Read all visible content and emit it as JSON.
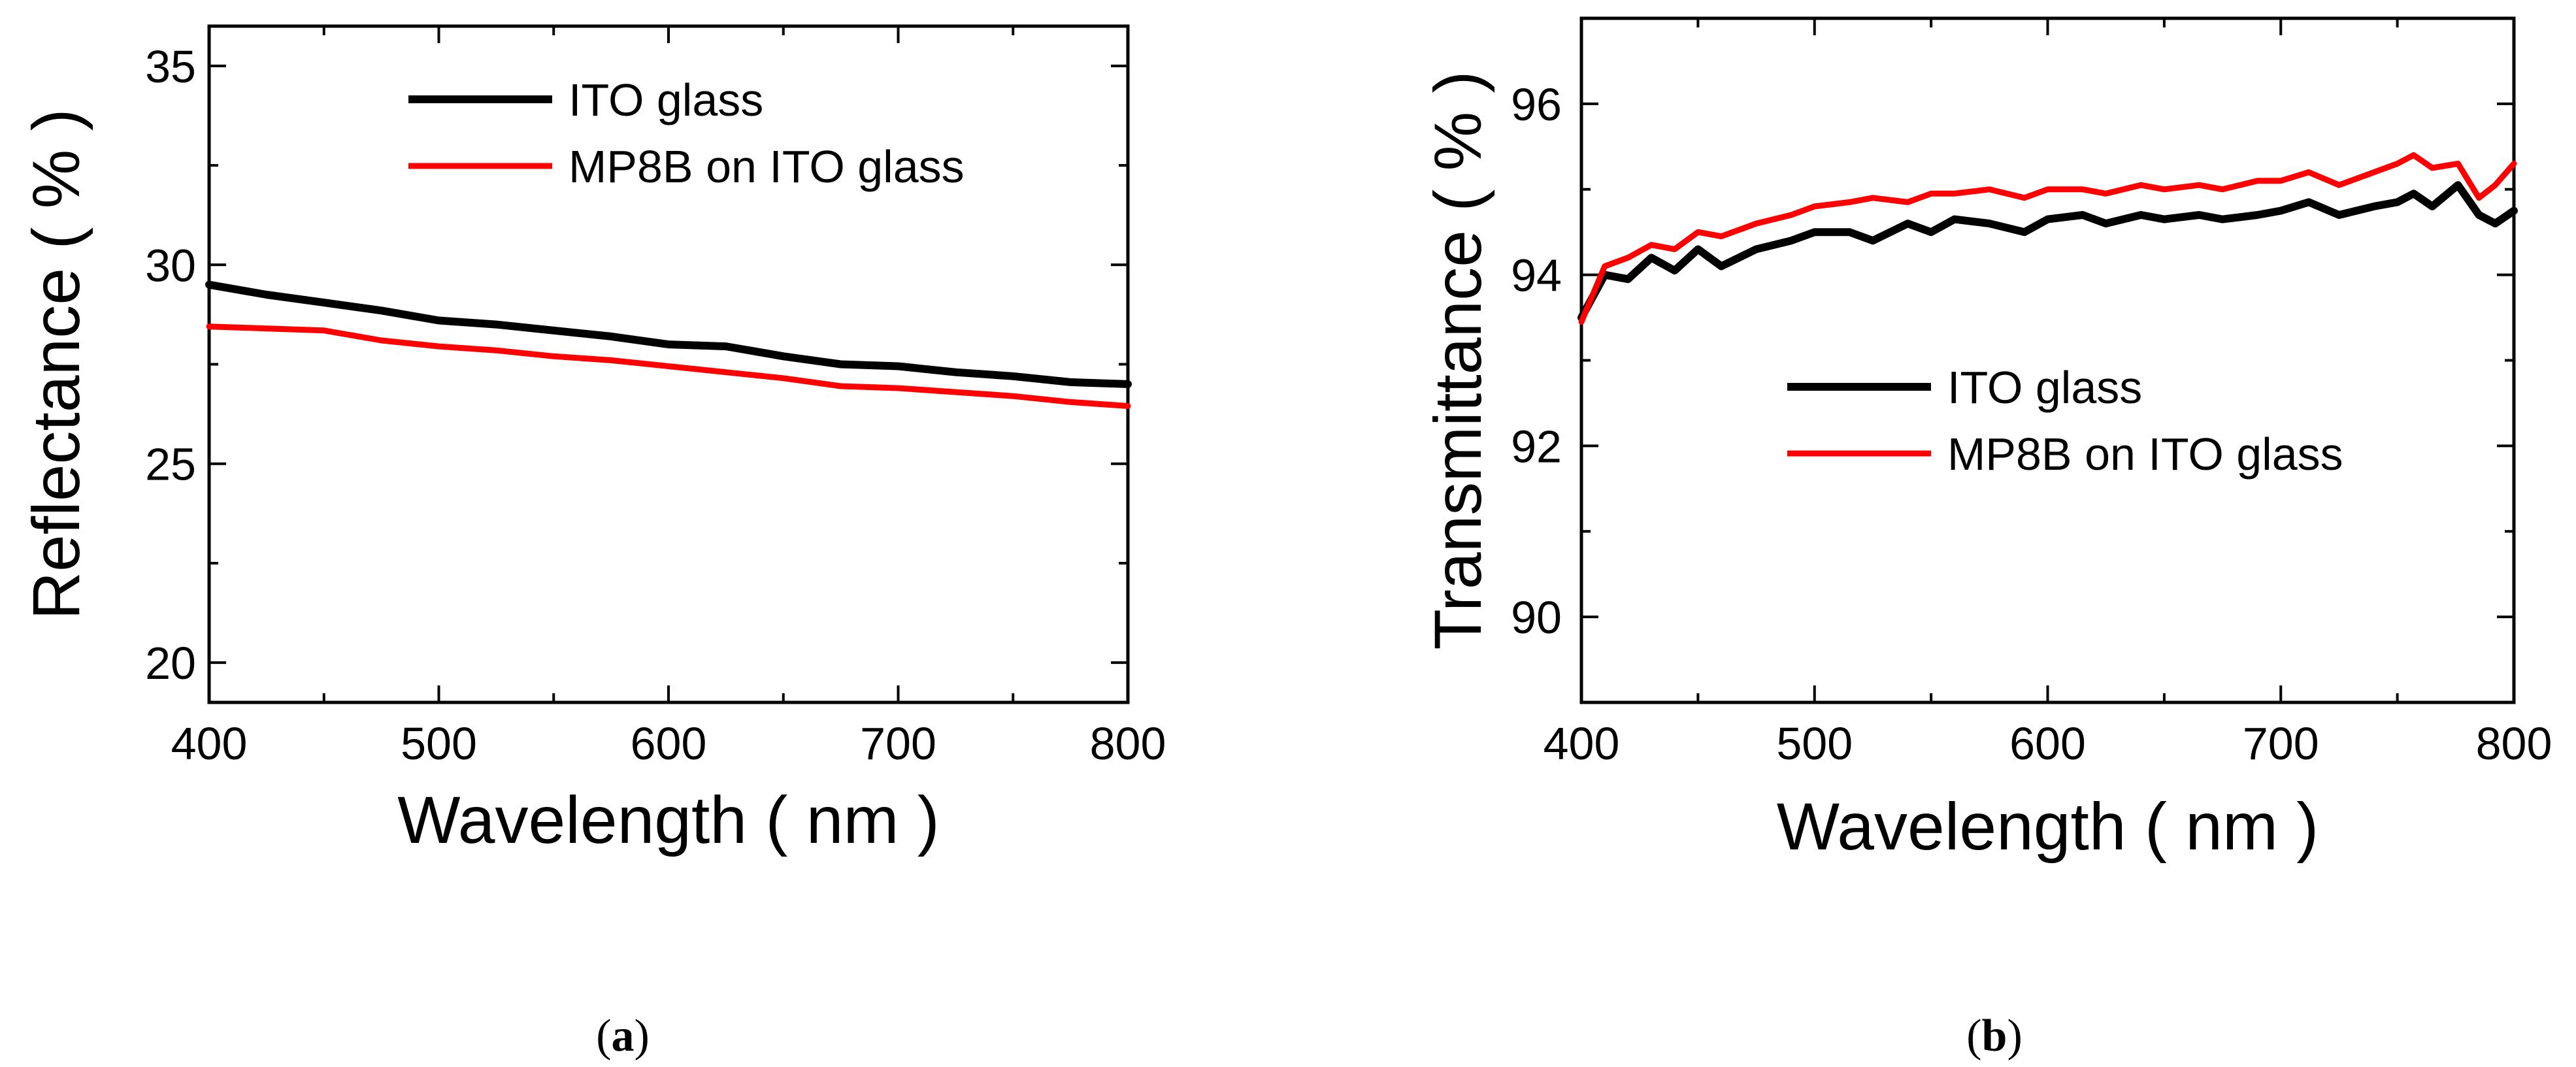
{
  "chart_data": [
    {
      "type": "line",
      "panel_label": "(a)",
      "panel_letter": "a",
      "xlabel": "Wavelength ( nm )",
      "ylabel": "Reflectance ( % )",
      "xlim": [
        400,
        800
      ],
      "ylim": [
        19,
        36
      ],
      "xticks": [
        400,
        500,
        600,
        700,
        800
      ],
      "yticks": [
        20,
        25,
        30,
        35
      ],
      "legend_position": "top-right",
      "x": [
        400,
        425,
        450,
        475,
        500,
        525,
        550,
        575,
        600,
        625,
        650,
        675,
        700,
        725,
        750,
        775,
        800
      ],
      "series": [
        {
          "name": "ITO glass",
          "color": "#000000",
          "values": [
            29.5,
            29.25,
            29.05,
            28.85,
            28.6,
            28.5,
            28.35,
            28.2,
            28.0,
            27.95,
            27.7,
            27.5,
            27.45,
            27.3,
            27.2,
            27.05,
            27.0
          ]
        },
        {
          "name": "MP8B on ITO glass",
          "color": "#ff0000",
          "values": [
            28.45,
            28.4,
            28.35,
            28.1,
            27.95,
            27.85,
            27.7,
            27.6,
            27.45,
            27.3,
            27.15,
            26.95,
            26.9,
            26.8,
            26.7,
            26.55,
            26.45
          ]
        }
      ]
    },
    {
      "type": "line",
      "panel_label": "(b)",
      "panel_letter": "b",
      "xlabel": "Wavelength ( nm )",
      "ylabel": "Transmittance ( % )",
      "xlim": [
        400,
        800
      ],
      "ylim": [
        89,
        97
      ],
      "xticks": [
        400,
        500,
        600,
        700,
        800
      ],
      "yticks": [
        90,
        92,
        94,
        96
      ],
      "legend_position": "center-right",
      "x": [
        400,
        410,
        420,
        430,
        440,
        450,
        460,
        475,
        490,
        500,
        515,
        525,
        540,
        550,
        560,
        575,
        590,
        600,
        615,
        625,
        640,
        650,
        665,
        675,
        690,
        700,
        712,
        725,
        740,
        750,
        757,
        765,
        776,
        785,
        792,
        800
      ],
      "series": [
        {
          "name": "ITO glass",
          "color": "#000000",
          "values": [
            93.5,
            94.0,
            93.95,
            94.2,
            94.05,
            94.3,
            94.1,
            94.3,
            94.4,
            94.5,
            94.5,
            94.4,
            94.6,
            94.5,
            94.65,
            94.6,
            94.5,
            94.65,
            94.7,
            94.6,
            94.7,
            94.65,
            94.7,
            94.65,
            94.7,
            94.75,
            94.85,
            94.7,
            94.8,
            94.85,
            94.95,
            94.8,
            95.05,
            94.7,
            94.6,
            94.75
          ]
        },
        {
          "name": "MP8B on ITO glass",
          "color": "#ff0000",
          "values": [
            93.45,
            94.1,
            94.2,
            94.35,
            94.3,
            94.5,
            94.45,
            94.6,
            94.7,
            94.8,
            94.85,
            94.9,
            94.85,
            94.95,
            94.95,
            95.0,
            94.9,
            95.0,
            95.0,
            94.95,
            95.05,
            95.0,
            95.05,
            95.0,
            95.1,
            95.1,
            95.2,
            95.05,
            95.2,
            95.3,
            95.4,
            95.25,
            95.3,
            94.9,
            95.05,
            95.3
          ]
        }
      ]
    }
  ]
}
